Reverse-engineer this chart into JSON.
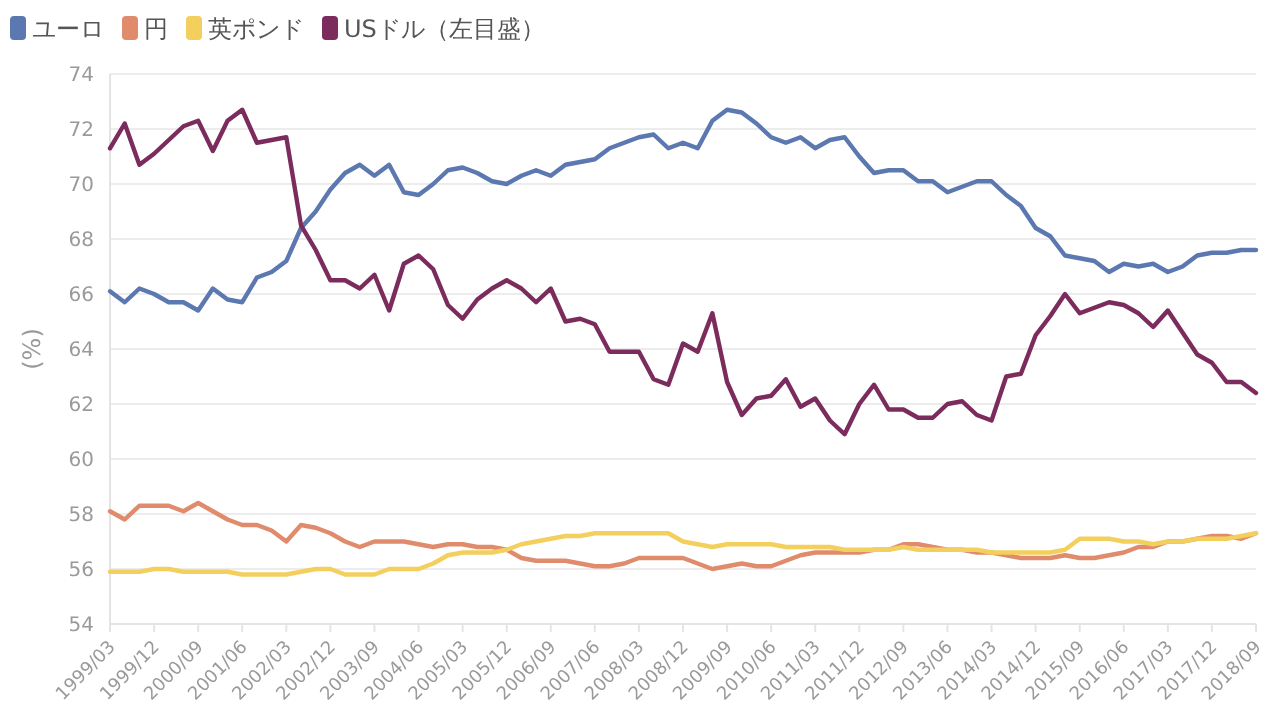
{
  "chart_data": {
    "type": "line",
    "ylabel": "(%)",
    "categories": [
      "1999/03",
      null,
      null,
      "1999/12",
      null,
      null,
      "2000/09",
      null,
      null,
      "2001/06",
      null,
      null,
      "2002/03",
      null,
      null,
      "2002/12",
      null,
      null,
      "2003/09",
      null,
      null,
      "2004/06",
      null,
      null,
      "2005/03",
      null,
      null,
      "2005/12",
      null,
      null,
      "2006/09",
      null,
      null,
      "2007/06",
      null,
      null,
      "2008/03",
      null,
      null,
      "2008/12",
      null,
      null,
      "2009/09",
      null,
      null,
      "2010/06",
      null,
      null,
      "2011/03",
      null,
      null,
      "2011/12",
      null,
      null,
      "2012/09",
      null,
      null,
      "2013/06",
      null,
      null,
      "2014/03",
      null,
      null,
      "2014/12",
      null,
      null,
      "2015/09",
      null,
      null,
      "2016/06",
      null,
      null,
      "2017/03",
      null,
      null,
      "2017/12",
      null,
      null,
      "2018/09"
    ],
    "series": [
      {
        "name": "ユーロ",
        "color": "#5b78b0",
        "values": [
          66.1,
          65.7,
          66.2,
          66.0,
          65.7,
          65.7,
          65.4,
          66.2,
          65.8,
          65.7,
          66.6,
          66.8,
          67.2,
          68.4,
          69.0,
          69.8,
          70.4,
          70.7,
          70.3,
          70.7,
          69.7,
          69.6,
          70.0,
          70.5,
          70.6,
          70.4,
          70.1,
          70.0,
          70.3,
          70.5,
          70.3,
          70.7,
          70.8,
          70.9,
          71.3,
          71.5,
          71.7,
          71.8,
          71.3,
          71.5,
          71.3,
          72.3,
          72.7,
          72.6,
          72.2,
          71.7,
          71.5,
          71.7,
          71.3,
          71.6,
          71.7,
          71.0,
          70.4,
          70.5,
          70.5,
          70.1,
          70.1,
          69.7,
          69.9,
          70.1,
          70.1,
          69.6,
          69.2,
          68.4,
          68.1,
          67.4,
          67.3,
          67.2,
          66.8,
          67.1,
          67.0,
          67.1,
          66.8,
          67.0,
          67.4,
          67.5,
          67.5,
          67.6,
          67.6
        ]
      },
      {
        "name": "円",
        "color": "#e08c6c",
        "values": [
          58.1,
          57.8,
          58.3,
          58.3,
          58.3,
          58.1,
          58.4,
          58.1,
          57.8,
          57.6,
          57.6,
          57.4,
          57.0,
          57.6,
          57.5,
          57.3,
          57.0,
          56.8,
          57.0,
          57.0,
          57.0,
          56.9,
          56.8,
          56.9,
          56.9,
          56.8,
          56.8,
          56.7,
          56.4,
          56.3,
          56.3,
          56.3,
          56.2,
          56.1,
          56.1,
          56.2,
          56.4,
          56.4,
          56.4,
          56.4,
          56.2,
          56.0,
          56.1,
          56.2,
          56.1,
          56.1,
          56.3,
          56.5,
          56.6,
          56.6,
          56.6,
          56.6,
          56.7,
          56.7,
          56.9,
          56.9,
          56.8,
          56.7,
          56.7,
          56.6,
          56.6,
          56.5,
          56.4,
          56.4,
          56.4,
          56.5,
          56.4,
          56.4,
          56.5,
          56.6,
          56.8,
          56.8,
          57.0,
          57.0,
          57.1,
          57.2,
          57.2,
          57.1,
          57.3
        ]
      },
      {
        "name": "英ポンド",
        "color": "#f3cf5e",
        "values": [
          55.9,
          55.9,
          55.9,
          56.0,
          56.0,
          55.9,
          55.9,
          55.9,
          55.9,
          55.8,
          55.8,
          55.8,
          55.8,
          55.9,
          56.0,
          56.0,
          55.8,
          55.8,
          55.8,
          56.0,
          56.0,
          56.0,
          56.2,
          56.5,
          56.6,
          56.6,
          56.6,
          56.7,
          56.9,
          57.0,
          57.1,
          57.2,
          57.2,
          57.3,
          57.3,
          57.3,
          57.3,
          57.3,
          57.3,
          57.0,
          56.9,
          56.8,
          56.9,
          56.9,
          56.9,
          56.9,
          56.8,
          56.8,
          56.8,
          56.8,
          56.7,
          56.7,
          56.7,
          56.7,
          56.8,
          56.7,
          56.7,
          56.7,
          56.7,
          56.7,
          56.6,
          56.6,
          56.6,
          56.6,
          56.6,
          56.7,
          57.1,
          57.1,
          57.1,
          57.0,
          57.0,
          56.9,
          57.0,
          57.0,
          57.1,
          57.1,
          57.1,
          57.2,
          57.3
        ]
      },
      {
        "name": "USドル（左目盛）",
        "color": "#7b2c5c",
        "values": [
          71.3,
          72.2,
          70.7,
          71.1,
          71.6,
          72.1,
          72.3,
          71.2,
          72.3,
          72.7,
          71.5,
          71.6,
          71.7,
          68.5,
          67.6,
          66.5,
          66.5,
          66.2,
          66.7,
          65.4,
          67.1,
          67.4,
          66.9,
          65.6,
          65.1,
          65.8,
          66.2,
          66.5,
          66.2,
          65.7,
          66.2,
          65.0,
          65.1,
          64.9,
          63.9,
          63.9,
          63.9,
          62.9,
          62.7,
          64.2,
          63.9,
          65.3,
          62.8,
          61.6,
          62.2,
          62.3,
          62.9,
          61.9,
          62.2,
          61.4,
          60.9,
          62.0,
          62.7,
          61.8,
          61.8,
          61.5,
          61.5,
          62.0,
          62.1,
          61.6,
          61.4,
          63.0,
          63.1,
          64.5,
          65.2,
          66.0,
          65.3,
          65.5,
          65.7,
          65.6,
          65.3,
          64.8,
          65.4,
          64.6,
          63.8,
          63.5,
          62.8,
          62.8,
          62.4
        ]
      }
    ],
    "ylim": [
      54,
      74
    ],
    "yticks": [
      54,
      56,
      58,
      60,
      62,
      64,
      66,
      68,
      70,
      72,
      74
    ],
    "grid": "y",
    "legend": "top left",
    "marker": "none",
    "line_style": "solid"
  }
}
